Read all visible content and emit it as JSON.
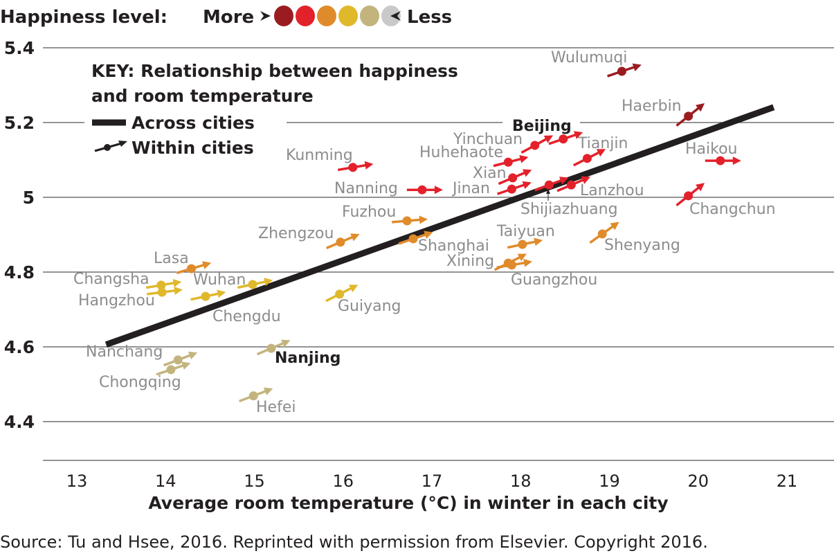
{
  "legend": {
    "title": "Happiness level:",
    "more": "More",
    "less": "Less",
    "colors": [
      "#9b1c20",
      "#e3212b",
      "#e08b2b",
      "#e0b82c",
      "#c3b47e",
      "#c9c9c9"
    ]
  },
  "key": {
    "line1": "KEY: Relationship between happiness",
    "line2": "and room temperature",
    "across": "Across cities",
    "within": "Within cities"
  },
  "source": "Source: Tu and Hsee, 2016. Reprinted with permission from Elsevier. Copyright 2016.",
  "chart_data": {
    "type": "scatter",
    "title": "",
    "xlabel": "Average room temperature (°C) in winter in each city",
    "ylabel": "",
    "xlim": [
      12.5,
      21.5
    ],
    "ylim": [
      4.3,
      5.4
    ],
    "xticks": [
      "13",
      "14",
      "15",
      "16",
      "17",
      "18",
      "19",
      "20",
      "21"
    ],
    "yticks": [
      "4.4",
      "4.6",
      "5",
      "5.2",
      "5.4"
    ],
    "yticks_all": [
      "4.4",
      "4.6",
      "4.8",
      "5",
      "5.2",
      "5.4"
    ],
    "grid": "horizontal",
    "across_cities_line": {
      "x": [
        13.33,
        20.85
      ],
      "y": [
        4.606,
        5.241
      ]
    },
    "points": [
      {
        "city": "Wulumuqi",
        "x": 19.14,
        "y": 5.337,
        "level": 0,
        "within_slope": 0.08
      },
      {
        "city": "Haerbin",
        "x": 19.89,
        "y": 5.217,
        "level": 0,
        "within_slope": 0.19
      },
      {
        "city": "Haikou",
        "x": 20.25,
        "y": 5.098,
        "level": 1,
        "within_slope": 0.0
      },
      {
        "city": "Changchun",
        "x": 19.89,
        "y": 5.004,
        "level": 1,
        "within_slope": 0.19
      },
      {
        "city": "Beijing",
        "x": 18.48,
        "y": 5.156,
        "level": 1,
        "within_slope": 0.08,
        "emphasis": true
      },
      {
        "city": "Yinchuan",
        "x": 18.16,
        "y": 5.139,
        "level": 1,
        "within_slope": 0.13
      },
      {
        "city": "Tianjin",
        "x": 18.75,
        "y": 5.104,
        "level": 1,
        "within_slope": 0.12
      },
      {
        "city": "Huhehaote",
        "x": 17.86,
        "y": 5.094,
        "level": 1,
        "within_slope": 0.06
      },
      {
        "city": "Xian",
        "x": 17.91,
        "y": 5.052,
        "level": 1,
        "within_slope": 0.1
      },
      {
        "city": "Jinan",
        "x": 17.9,
        "y": 5.022,
        "level": 1,
        "within_slope": 0.08
      },
      {
        "city": "Shijiazhuang",
        "x": 18.32,
        "y": 5.033,
        "level": 1,
        "within_slope": 0.09
      },
      {
        "city": "Lanzhou",
        "x": 18.57,
        "y": 5.033,
        "level": 1,
        "within_slope": 0.1
      },
      {
        "city": "Nanning",
        "x": 16.89,
        "y": 5.02,
        "level": 1,
        "within_slope": 0.0
      },
      {
        "city": "Kunming",
        "x": 16.11,
        "y": 5.08,
        "level": 1,
        "within_slope": 0.04
      },
      {
        "city": "Fuzhou",
        "x": 16.72,
        "y": 4.937,
        "level": 2,
        "within_slope": 0.02
      },
      {
        "city": "Shanghai",
        "x": 16.79,
        "y": 4.889,
        "level": 2,
        "within_slope": 0.08
      },
      {
        "city": "Zhengzou",
        "x": 15.97,
        "y": 4.88,
        "level": 2,
        "within_slope": 0.1
      },
      {
        "city": "Taiyuan",
        "x": 18.02,
        "y": 4.874,
        "level": 2,
        "within_slope": 0.05
      },
      {
        "city": "Shenyang",
        "x": 18.92,
        "y": 4.902,
        "level": 2,
        "within_slope": 0.17
      },
      {
        "city": "Xining",
        "x": 17.86,
        "y": 4.824,
        "level": 2,
        "within_slope": 0.12
      },
      {
        "city": "Guangzhou",
        "x": 17.9,
        "y": 4.819,
        "level": 2,
        "within_slope": 0.04
      },
      {
        "city": "Lasa",
        "x": 14.29,
        "y": 4.809,
        "level": 2,
        "within_slope": 0.07
      },
      {
        "city": "Changsha",
        "x": 13.95,
        "y": 4.765,
        "level": 3,
        "within_slope": 0.04
      },
      {
        "city": "Hangzhou",
        "x": 13.96,
        "y": 4.746,
        "level": 3,
        "within_slope": 0.03
      },
      {
        "city": "Wuhan",
        "x": 14.45,
        "y": 4.735,
        "level": 3,
        "within_slope": 0.05
      },
      {
        "city": "Chengdu",
        "x": 14.98,
        "y": 4.767,
        "level": 3,
        "within_slope": 0.05
      },
      {
        "city": "Guiyang",
        "x": 15.96,
        "y": 4.741,
        "level": 3,
        "within_slope": 0.12
      },
      {
        "city": "Nanjing",
        "x": 15.19,
        "y": 4.596,
        "level": 4,
        "within_slope": 0.1,
        "emphasis": true
      },
      {
        "city": "Nanchang",
        "x": 14.14,
        "y": 4.565,
        "level": 4,
        "within_slope": 0.09
      },
      {
        "city": "Chongqing",
        "x": 14.06,
        "y": 4.539,
        "level": 4,
        "within_slope": 0.08
      },
      {
        "city": "Hefei",
        "x": 14.99,
        "y": 4.469,
        "level": 4,
        "within_slope": 0.09
      }
    ]
  }
}
